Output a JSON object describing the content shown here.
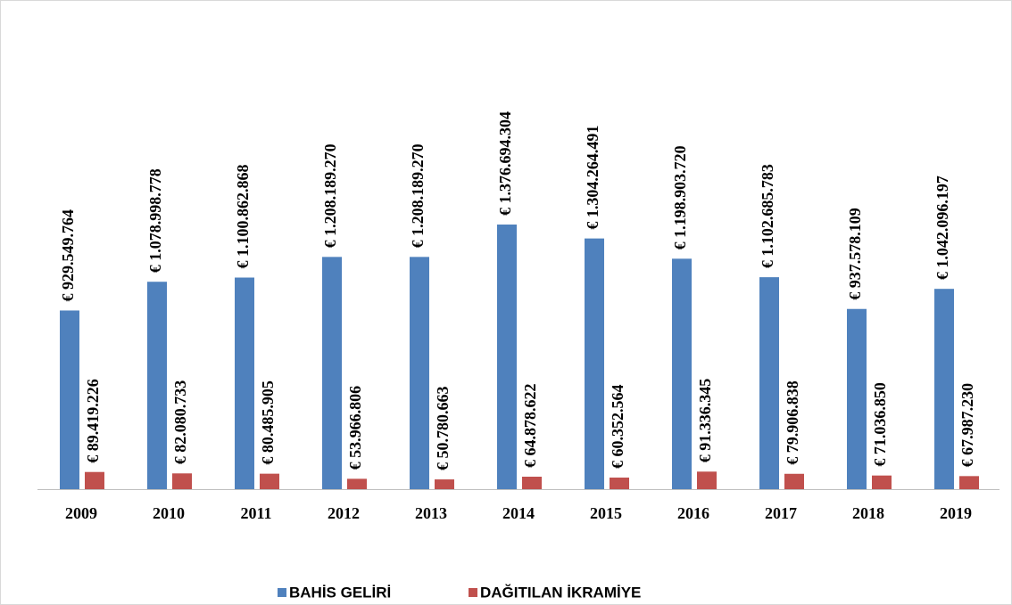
{
  "chart_data": {
    "type": "bar",
    "categories": [
      "2009",
      "2010",
      "2011",
      "2012",
      "2013",
      "2014",
      "2015",
      "2016",
      "2017",
      "2018",
      "2019"
    ],
    "series": [
      {
        "name": "BAHİS GELİRİ",
        "color": "#4f81bd",
        "values": [
          929549764,
          1078998778,
          1100862868,
          1208189270,
          1208189270,
          1376694304,
          1304264491,
          1198903720,
          1102685783,
          937578109,
          1042096197
        ],
        "value_labels": [
          "€ 929.549.764",
          "€ 1.078.998.778",
          "€ 1.100.862.868",
          "€ 1.208.189.270",
          "€ 1.208.189.270",
          "€ 1.376.694.304",
          "€ 1.304.264.491",
          "€ 1.198.903.720",
          "€ 1.102.685.783",
          "€ 937.578.109",
          "€ 1.042.096.197"
        ]
      },
      {
        "name": "DAĞITILAN İKRAMİYE",
        "color": "#c0504d",
        "values": [
          89419226,
          82080733,
          80485905,
          53966806,
          50780663,
          64878622,
          60352564,
          91336345,
          79906838,
          71036850,
          67987230
        ],
        "value_labels": [
          "€ 89.419.226",
          "€ 82.080.733",
          "€ 80.485.905",
          "€ 53.966.806",
          "€ 50.780.663",
          "€ 64.878.622",
          "€ 60.352.564",
          "€ 91.336.345",
          "€ 79.906.838",
          "€ 71.036.850",
          "€ 67.987.230"
        ]
      }
    ],
    "legend": "bottom"
  }
}
